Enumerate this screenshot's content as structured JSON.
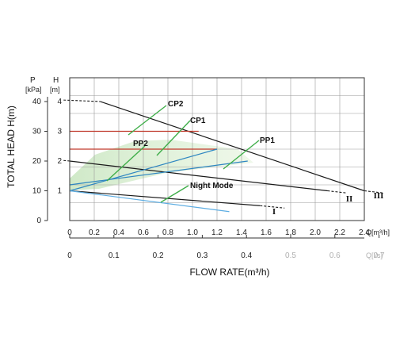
{
  "chart_data": {
    "type": "line",
    "title": "",
    "xlabel": "FLOW RATE(m³/h)",
    "ylabel": "TOTAL HEAD H(m)",
    "x_unit_label": "Q[m³/h]",
    "x2_unit_label": "Q[l/s]",
    "y_unit_labels": {
      "pressure": "P",
      "pressure_unit": "[kPa]",
      "head": "H",
      "head_unit": "[m]"
    },
    "xlim": [
      0,
      2.4
    ],
    "ylim": [
      0,
      4.8
    ],
    "x_ticks": [
      "0",
      "0.2",
      "0.4",
      "0.6",
      "0.8",
      "1.0",
      "1.2",
      "1.4",
      "1.6",
      "1.8",
      "2.0",
      "2.2",
      "2.4"
    ],
    "x2_ticks": [
      "0",
      "0.1",
      "0.2",
      "0.3",
      "0.4",
      "0.5",
      "0.6",
      "0.7"
    ],
    "head_ticks": [
      "1",
      "2",
      "3",
      "4"
    ],
    "pressure_ticks": [
      "0",
      "10",
      "20",
      "30",
      "40"
    ],
    "grid": true,
    "series": [
      {
        "name": "III",
        "color": "#1a1a1a",
        "points": [
          [
            0.25,
            4.0
          ],
          [
            2.4,
            1.0
          ]
        ]
      },
      {
        "name": "II",
        "color": "#1a1a1a",
        "points": [
          [
            0.0,
            2.0
          ],
          [
            2.1,
            1.0
          ]
        ]
      },
      {
        "name": "I",
        "color": "#1a1a1a",
        "points": [
          [
            0.0,
            1.0
          ],
          [
            1.55,
            0.5
          ]
        ]
      },
      {
        "name": "CP2",
        "color": "#c0392b",
        "points": [
          [
            0.0,
            3.0
          ],
          [
            1.05,
            3.0
          ]
        ]
      },
      {
        "name": "CP1",
        "color": "#c0392b",
        "points": [
          [
            0.0,
            2.4
          ],
          [
            1.2,
            2.4
          ]
        ]
      },
      {
        "name": "PP2",
        "color": "#2e86c1",
        "points": [
          [
            0.0,
            1.0
          ],
          [
            1.2,
            2.4
          ]
        ]
      },
      {
        "name": "PP1",
        "color": "#2e86c1",
        "points": [
          [
            0.0,
            1.2
          ],
          [
            1.45,
            2.0
          ]
        ]
      },
      {
        "name": "Night Mode",
        "color": "#5dade2",
        "points": [
          [
            0.0,
            1.0
          ],
          [
            1.3,
            0.3
          ]
        ]
      }
    ],
    "annotations": [
      {
        "text": "CP2"
      },
      {
        "text": "CP1"
      },
      {
        "text": "PP2"
      },
      {
        "text": "PP1"
      },
      {
        "text": "Night Mode"
      },
      {
        "text": "I"
      },
      {
        "text": "II"
      },
      {
        "text": "III"
      }
    ]
  }
}
